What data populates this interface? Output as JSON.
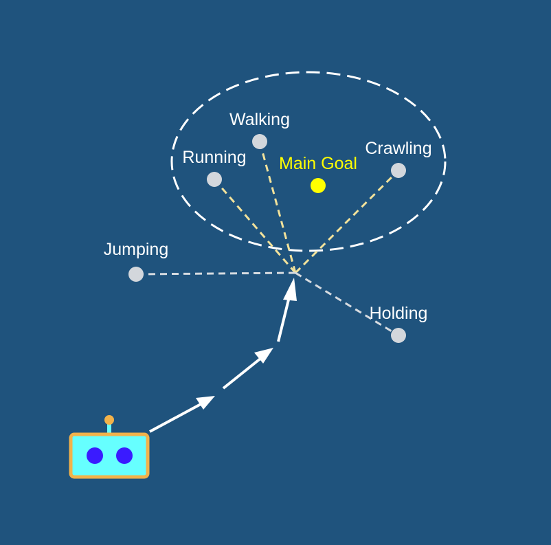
{
  "colors": {
    "background": "#1f537d",
    "goal": "#ffff00",
    "node": "#d3d7dc",
    "inside_link": "#f2e29b",
    "outside_link": "#d6dbe0",
    "ellipse": "#ffffff",
    "arrow": "#ffffff",
    "robot_body": "#66ffff",
    "robot_frame": "#f2b24a",
    "robot_eye": "#3a1bff"
  },
  "goal": {
    "label": "Main Goal"
  },
  "nodes": [
    {
      "id": "walking",
      "label": "Walking"
    },
    {
      "id": "running",
      "label": "Running"
    },
    {
      "id": "crawling",
      "label": "Crawling"
    },
    {
      "id": "jumping",
      "label": "Jumping"
    },
    {
      "id": "holding",
      "label": "Holding"
    }
  ],
  "icons": [
    "robot-icon"
  ]
}
